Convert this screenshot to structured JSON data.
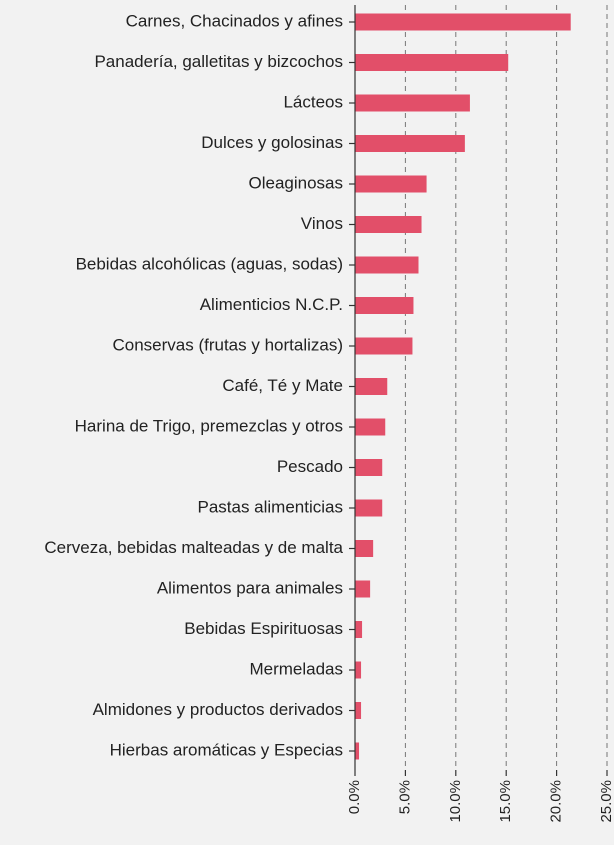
{
  "chart_data": {
    "type": "hbar",
    "categories": [
      "Carnes, Chacinados y afines",
      "Panadería, galletitas y bizcochos",
      "Lácteos",
      "Dulces y golosinas",
      "Oleaginosas",
      "Vinos",
      "Bebidas alcohólicas (aguas, sodas)",
      "Alimenticios N.C.P.",
      "Conservas (frutas y hortalizas)",
      "Café, Té y Mate",
      "Harina de Trigo, premezclas y otros",
      "Pescado",
      "Pastas alimenticias",
      "Cerveza, bebidas malteadas y de malta",
      "Alimentos para animales",
      "Bebidas Espirituosas",
      "Mermeladas",
      "Almidones y productos derivados",
      "Hierbas aromáticas y Especias"
    ],
    "values": [
      21.4,
      15.2,
      11.4,
      10.9,
      7.1,
      6.6,
      6.3,
      5.8,
      5.7,
      3.2,
      3.0,
      2.7,
      2.7,
      1.8,
      1.5,
      0.7,
      0.6,
      0.6,
      0.4
    ],
    "color": "#e24f69",
    "xlim": [
      0,
      25
    ],
    "xticks": [
      {
        "value": 0,
        "label": "0.0%"
      },
      {
        "value": 5,
        "label": "5.0%"
      },
      {
        "value": 10,
        "label": "10.0%"
      },
      {
        "value": 15,
        "label": "15.0%"
      },
      {
        "value": 20,
        "label": "20.0%"
      },
      {
        "value": 25,
        "label": "25.0%"
      }
    ],
    "grid": true
  }
}
